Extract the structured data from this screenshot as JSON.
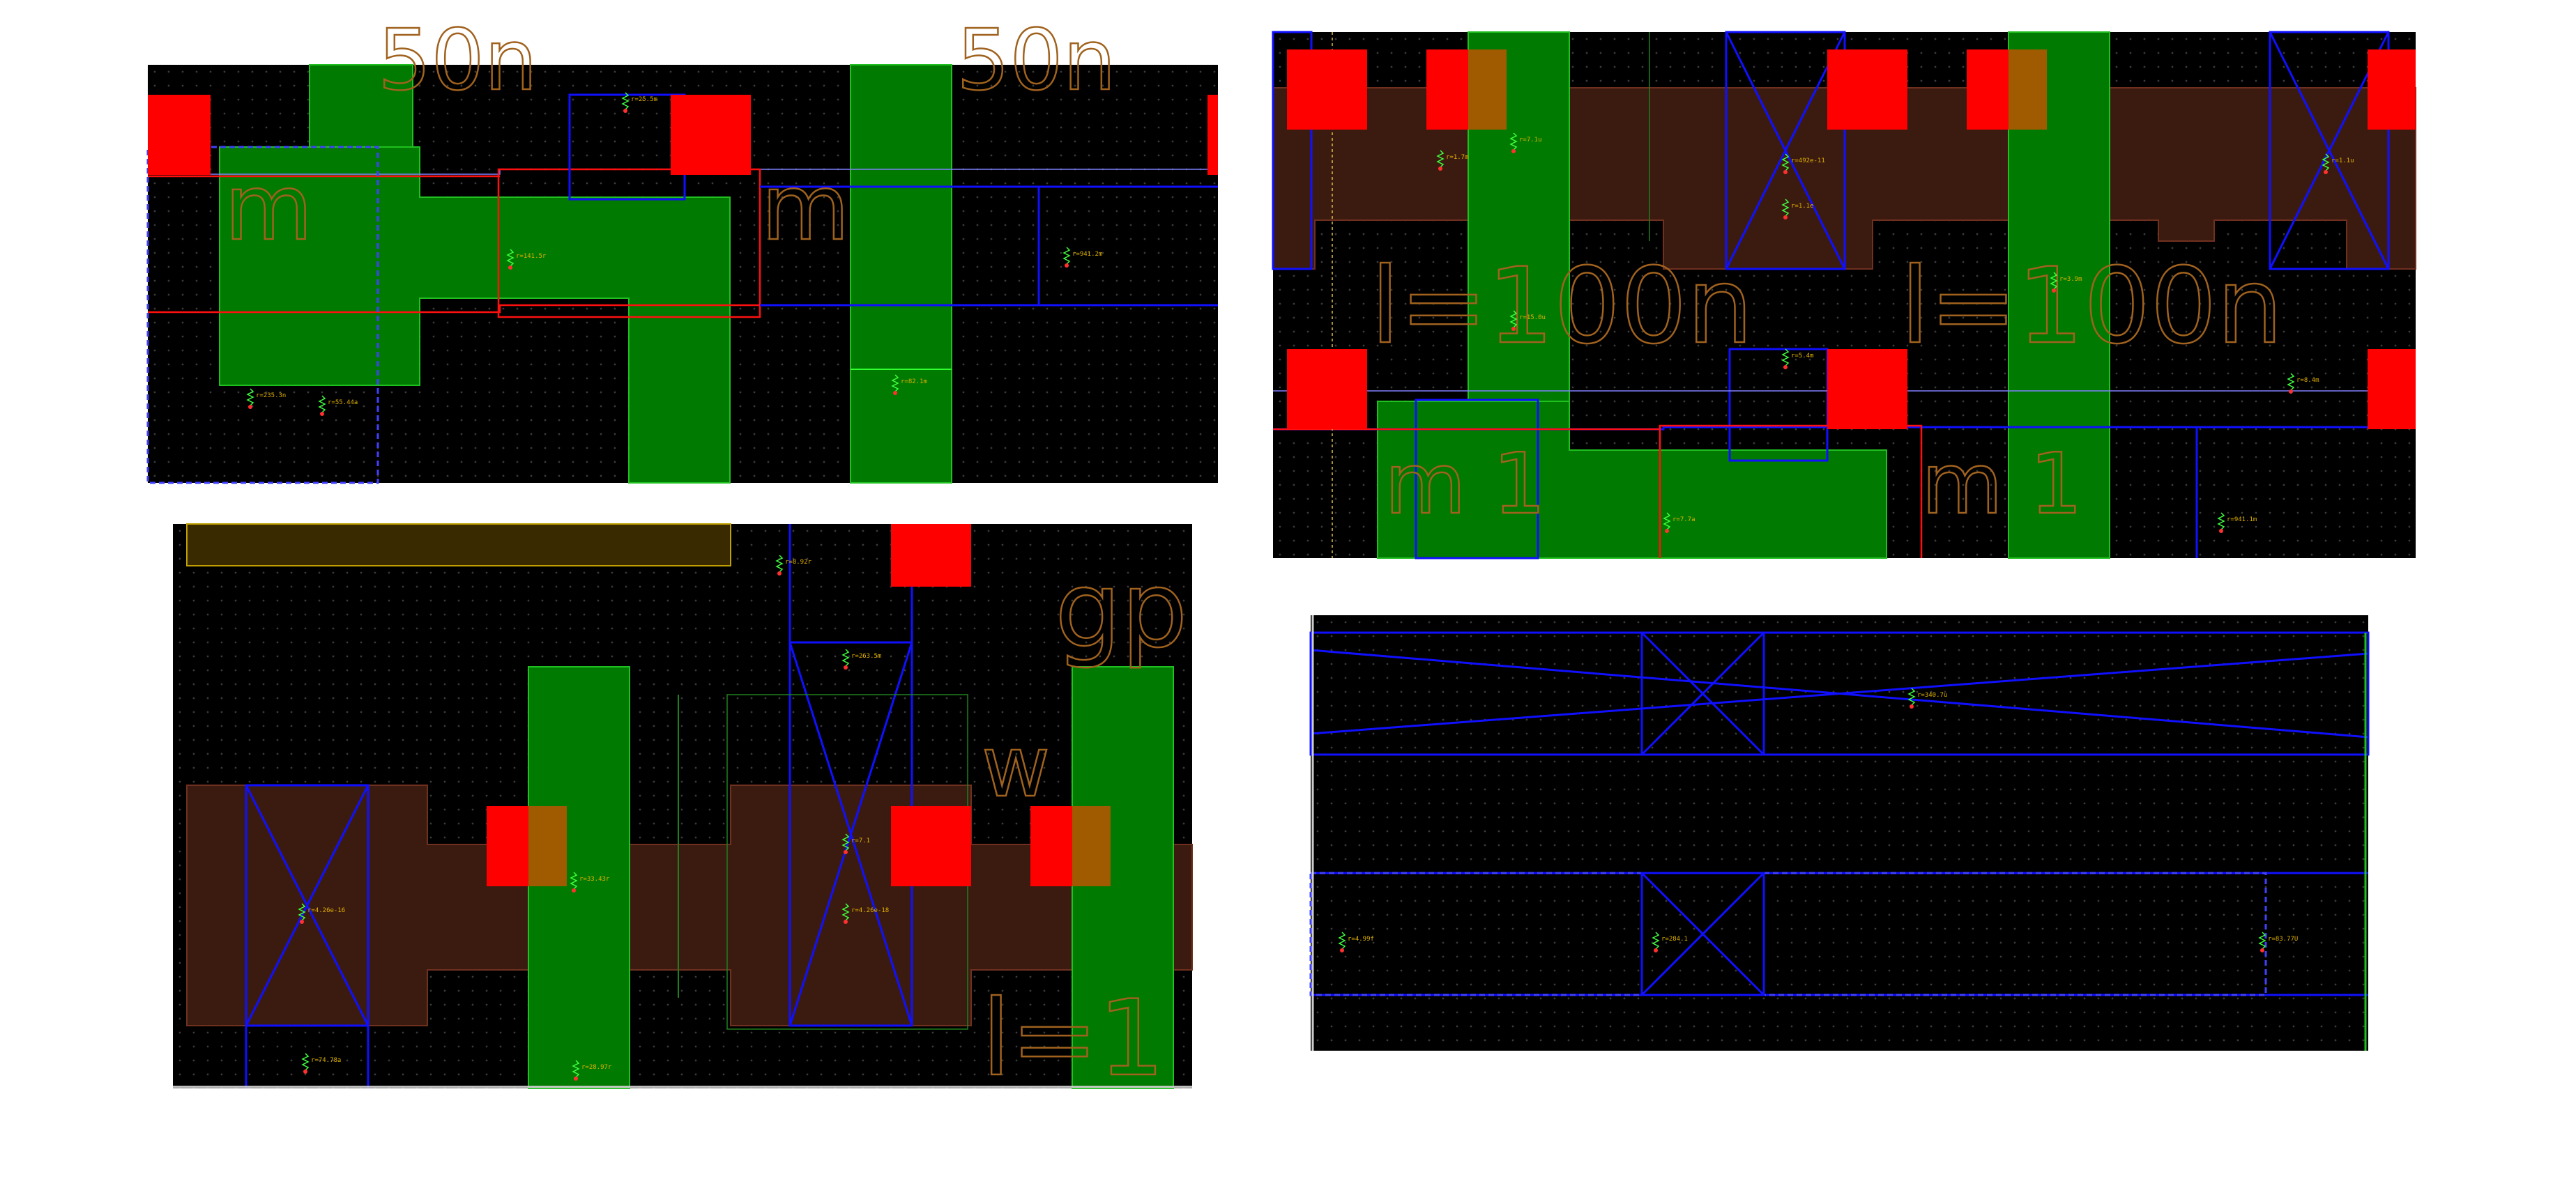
{
  "colors": {
    "background": "#000000",
    "via": "#ff0000",
    "poly": "#007a00",
    "metal1": "#1010ff",
    "diff": "#3b1b10",
    "overlap": "#a05a00",
    "big_text": "#a0621e",
    "resistor": "#e0b000",
    "nwell": "#3a2a00"
  },
  "panels": [
    {
      "name": "top-left",
      "big_text": [
        "m",
        "m",
        "50n",
        "50n"
      ],
      "resistor_labels": [
        "r=25.5m",
        "r=141.5r",
        "r=941.2m",
        "r=82.1m",
        "r=235.3n",
        "r=55.44a"
      ]
    },
    {
      "name": "top-right",
      "big_text": [
        "l=100n",
        "l=100n",
        "m 1",
        "m 1"
      ],
      "resistor_labels": [
        "r=7.1u",
        "r=492e-11",
        "r=1.1e",
        "r=5.4m",
        "r=1.1u",
        "r=15.0u",
        "r=3.9m",
        "r=1.7m",
        "r=8.4m",
        "r=7.7a",
        "r=941.1m"
      ]
    },
    {
      "name": "bottom-left",
      "big_text": [
        "gp",
        "w",
        "l=1"
      ],
      "resistor_labels": [
        "r=8.92r",
        "r=263.5m",
        "r=7.1",
        "r=4.26e-16",
        "r=4.26e-18",
        "r=33.43r",
        "r=74.78a",
        "r=28.97r"
      ]
    },
    {
      "name": "bottom-right",
      "big_text": [],
      "resistor_labels": [
        "r=340.7u",
        "r=4.99f",
        "r=284.1",
        "r=83.77U"
      ]
    }
  ]
}
